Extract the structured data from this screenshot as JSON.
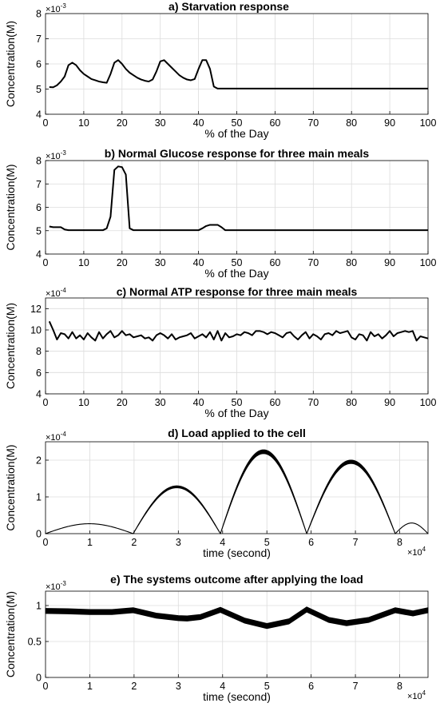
{
  "chart_data": [
    {
      "id": "a",
      "type": "line",
      "title": "a) Starvation response",
      "xlabel": "% of the Day",
      "ylabel": "Concentration(M)",
      "y_multiplier": "×10",
      "y_exponent": "-3",
      "xlim": [
        0,
        100
      ],
      "ylim": [
        4,
        8
      ],
      "xticks": [
        "0",
        "10",
        "20",
        "30",
        "40",
        "50",
        "60",
        "70",
        "80",
        "90",
        "100"
      ],
      "yticks": [
        "4",
        "5",
        "6",
        "7",
        "8"
      ],
      "grid": true,
      "series": [
        {
          "x": [
            1,
            2,
            3,
            4,
            5,
            6,
            7,
            8,
            9,
            10,
            11,
            12,
            13,
            14,
            15,
            16,
            17,
            18,
            19,
            20,
            21,
            22,
            23,
            24,
            25,
            26,
            27,
            28,
            29,
            30,
            31,
            32,
            33,
            34,
            35,
            36,
            37,
            38,
            39,
            40,
            41,
            42,
            43,
            44,
            45,
            46,
            47,
            48,
            49,
            50,
            55,
            60,
            65,
            70,
            75,
            80,
            85,
            90,
            95,
            100
          ],
          "y": [
            5.08,
            5.07,
            5.15,
            5.3,
            5.5,
            5.95,
            6.05,
            5.95,
            5.75,
            5.6,
            5.5,
            5.4,
            5.35,
            5.3,
            5.27,
            5.25,
            5.6,
            6.05,
            6.15,
            6.0,
            5.8,
            5.65,
            5.55,
            5.45,
            5.38,
            5.33,
            5.3,
            5.38,
            5.7,
            6.1,
            6.15,
            6.0,
            5.85,
            5.7,
            5.55,
            5.45,
            5.38,
            5.35,
            5.4,
            5.8,
            6.15,
            6.15,
            5.8,
            5.1,
            5.02,
            5.02,
            5.02,
            5.02,
            5.02,
            5.02,
            5.02,
            5.02,
            5.02,
            5.02,
            5.02,
            5.02,
            5.02,
            5.02,
            5.02,
            5.02
          ]
        }
      ]
    },
    {
      "id": "b",
      "type": "line",
      "title": "b) Normal Glucose response for three main meals",
      "xlabel": "% of the Day",
      "ylabel": "Concentration(M)",
      "y_multiplier": "×10",
      "y_exponent": "-3",
      "xlim": [
        0,
        100
      ],
      "ylim": [
        4,
        8
      ],
      "xticks": [
        "0",
        "10",
        "20",
        "30",
        "40",
        "50",
        "60",
        "70",
        "80",
        "90",
        "100"
      ],
      "yticks": [
        "4",
        "5",
        "6",
        "7",
        "8"
      ],
      "grid": true,
      "series": [
        {
          "x": [
            1,
            2,
            3,
            4,
            5,
            6,
            10,
            15,
            16,
            17,
            18,
            19,
            20,
            21,
            22,
            23,
            24,
            30,
            40,
            41,
            42,
            43,
            44,
            45,
            46,
            47,
            50,
            60,
            70,
            80,
            90,
            100
          ],
          "y": [
            5.18,
            5.15,
            5.15,
            5.15,
            5.05,
            5.02,
            5.02,
            5.02,
            5.1,
            5.6,
            7.6,
            7.75,
            7.72,
            7.4,
            5.1,
            5.02,
            5.02,
            5.02,
            5.02,
            5.1,
            5.2,
            5.25,
            5.25,
            5.25,
            5.15,
            5.02,
            5.02,
            5.02,
            5.02,
            5.02,
            5.02,
            5.02
          ]
        }
      ]
    },
    {
      "id": "c",
      "type": "line",
      "title": "c) Normal ATP response for three main meals",
      "xlabel": "% of the Day",
      "ylabel": "Concentration(M)",
      "y_multiplier": "×10",
      "y_exponent": "-4",
      "xlim": [
        0,
        100
      ],
      "ylim": [
        4,
        13
      ],
      "xticks": [
        "0",
        "10",
        "20",
        "30",
        "40",
        "50",
        "60",
        "70",
        "80",
        "90",
        "100"
      ],
      "yticks": [
        "4",
        "6",
        "8",
        "10",
        "12"
      ],
      "grid": true,
      "series": [
        {
          "x": [
            1,
            2,
            3,
            4,
            5,
            6,
            7,
            8,
            9,
            10,
            11,
            12,
            13,
            14,
            15,
            16,
            17,
            18,
            19,
            20,
            21,
            22,
            23,
            24,
            25,
            26,
            27,
            28,
            29,
            30,
            31,
            32,
            33,
            34,
            35,
            36,
            37,
            38,
            39,
            40,
            41,
            42,
            43,
            44,
            45,
            46,
            47,
            48,
            49,
            50,
            51,
            52,
            53,
            54,
            55,
            56,
            57,
            58,
            59,
            60,
            61,
            62,
            63,
            64,
            65,
            66,
            67,
            68,
            69,
            70,
            71,
            72,
            73,
            74,
            75,
            76,
            77,
            78,
            79,
            80,
            81,
            82,
            83,
            84,
            85,
            86,
            87,
            88,
            89,
            90,
            91,
            92,
            93,
            94,
            95,
            96,
            97,
            98,
            99,
            100
          ],
          "y": [
            10.8,
            10.0,
            9.1,
            9.7,
            9.6,
            9.2,
            9.8,
            9.2,
            9.5,
            9.1,
            9.7,
            9.3,
            9.0,
            9.8,
            9.2,
            9.6,
            9.9,
            9.3,
            9.5,
            9.9,
            9.5,
            9.6,
            9.3,
            9.4,
            9.5,
            9.2,
            9.3,
            9.0,
            9.5,
            9.7,
            9.5,
            9.2,
            9.6,
            9.1,
            9.3,
            9.4,
            9.5,
            9.7,
            9.2,
            9.4,
            9.6,
            9.3,
            9.8,
            9.1,
            9.9,
            9.0,
            9.7,
            9.3,
            9.4,
            9.6,
            9.5,
            9.8,
            9.7,
            9.5,
            9.9,
            9.9,
            9.8,
            9.6,
            9.8,
            9.7,
            9.5,
            9.3,
            9.7,
            9.8,
            9.4,
            9.1,
            9.5,
            9.8,
            9.2,
            9.6,
            9.4,
            9.1,
            9.6,
            9.7,
            9.5,
            9.9,
            9.7,
            9.8,
            9.9,
            9.3,
            9.1,
            9.6,
            9.5,
            9.0,
            9.8,
            9.4,
            9.6,
            9.2,
            9.5,
            9.9,
            9.4,
            9.7,
            9.8,
            9.9,
            9.8,
            9.9,
            9.0,
            9.4,
            9.3,
            9.2
          ]
        }
      ]
    },
    {
      "id": "d",
      "type": "line",
      "title": "d) Load applied to the cell",
      "xlabel": "time (second)",
      "ylabel": "Concentration(M)",
      "y_multiplier": "×10",
      "y_exponent": "-4",
      "x_multiplier": "×10",
      "x_exponent": "4",
      "xlim": [
        0,
        8.64
      ],
      "ylim": [
        0,
        2.5
      ],
      "xticks": [
        "0",
        "1",
        "2",
        "3",
        "4",
        "5",
        "6",
        "7",
        "8"
      ],
      "yticks": [
        "0",
        "1",
        "2"
      ],
      "grid": true,
      "series": [
        {
          "name": "",
          "arches": [
            {
              "x0": 0,
              "x1": 1.98,
              "peak": 0.27,
              "thickness": 0.0
            },
            {
              "x0": 1.98,
              "x1": 3.95,
              "peak": 1.3,
              "thickness": 0.05
            },
            {
              "x0": 3.95,
              "x1": 5.9,
              "peak": 2.28,
              "thickness": 0.1
            },
            {
              "x0": 5.9,
              "x1": 7.9,
              "peak": 2.0,
              "thickness": 0.09
            },
            {
              "x0": 7.9,
              "x1": 8.64,
              "peak": 0.29,
              "thickness": 0.0
            }
          ]
        }
      ]
    },
    {
      "id": "e",
      "type": "line",
      "title": "e) The systems outcome after applying the load",
      "xlabel": "time (second)",
      "ylabel": "Concentration(M)",
      "y_multiplier": "×10",
      "y_exponent": "-3",
      "x_multiplier": "×10",
      "x_exponent": "4",
      "xlim": [
        0,
        8.64
      ],
      "ylim": [
        0,
        1.2
      ],
      "xticks": [
        "0",
        "1",
        "2",
        "3",
        "4",
        "5",
        "6",
        "7",
        "8"
      ],
      "yticks": [
        "0",
        "0.5",
        "1"
      ],
      "grid": true,
      "series": [
        {
          "x": [
            0,
            0.5,
            1.0,
            1.5,
            1.98,
            2.5,
            3.0,
            3.2,
            3.5,
            3.95,
            4.5,
            5.0,
            5.5,
            5.9,
            6.4,
            6.8,
            7.3,
            7.9,
            8.3,
            8.64
          ],
          "y": [
            0.925,
            0.92,
            0.91,
            0.91,
            0.935,
            0.86,
            0.825,
            0.82,
            0.84,
            0.94,
            0.79,
            0.715,
            0.78,
            0.945,
            0.8,
            0.755,
            0.8,
            0.935,
            0.89,
            0.935
          ],
          "thickness": 0.07
        }
      ]
    }
  ]
}
